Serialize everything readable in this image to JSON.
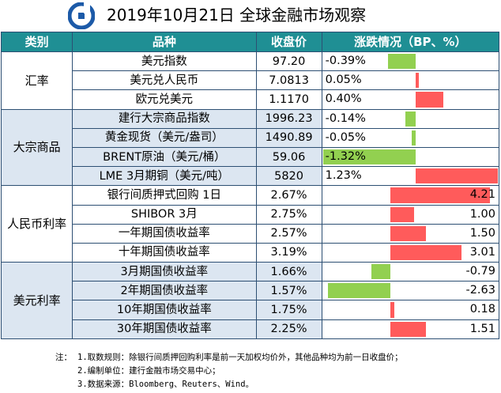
{
  "header": {
    "title": "2019年10月21日 全球金融市场观察",
    "logo_color": "#1c5aa8"
  },
  "table": {
    "columns": [
      "类别",
      "品种",
      "收盘价",
      "涨跌情况（BP、%）"
    ],
    "header_bg": "#1f8f94",
    "groups": [
      {
        "category": "汇率",
        "shade": "white",
        "mode": "pct",
        "rows": [
          {
            "name": "美元指数",
            "close": "97.20",
            "change": "-0.39%",
            "value": -0.39
          },
          {
            "name": "美元兑人民币",
            "close": "7.0813",
            "change": "0.05%",
            "value": 0.05
          },
          {
            "name": "欧元兑美元",
            "close": "1.1170",
            "change": "0.40%",
            "value": 0.4
          }
        ]
      },
      {
        "category": "大宗商品",
        "shade": "blue",
        "mode": "pct",
        "rows": [
          {
            "name": "建行大宗商品指数",
            "close": "1996.23",
            "change": "-0.14%",
            "value": -0.14
          },
          {
            "name": "黄金现货（美元/盎司）",
            "close": "1490.89",
            "change": "-0.05%",
            "value": -0.05
          },
          {
            "name": "BRENT原油（美元/桶）",
            "close": "59.06",
            "change": "-1.32%",
            "value": -1.32
          },
          {
            "name": "LME 3月期铜（美元/吨）",
            "close": "5820",
            "change": "1.23%",
            "value": 1.23
          }
        ]
      },
      {
        "category": "人民币利率",
        "shade": "white",
        "mode": "bp",
        "rows": [
          {
            "name": "银行间质押式回购 1日",
            "close": "2.67%",
            "change": "4.21",
            "value": 4.21
          },
          {
            "name": "SHIBOR 3月",
            "close": "2.75%",
            "change": "1.00",
            "value": 1.0
          },
          {
            "name": "一年期国债收益率",
            "close": "2.57%",
            "change": "1.50",
            "value": 1.5
          },
          {
            "name": "十年期国债收益率",
            "close": "3.19%",
            "change": "3.01",
            "value": 3.01
          }
        ]
      },
      {
        "category": "美元利率",
        "shade": "blue",
        "mode": "bp",
        "rows": [
          {
            "name": "3月期国债收益率",
            "close": "1.66%",
            "change": "-0.79",
            "value": -0.79
          },
          {
            "name": "2年期国债收益率",
            "close": "1.57%",
            "change": "-2.63",
            "value": -2.63
          },
          {
            "name": "10年期国债收益率",
            "close": "1.75%",
            "change": "0.18",
            "value": 0.18
          },
          {
            "name": "30年期国债收益率",
            "close": "2.25%",
            "change": "1.51",
            "value": 1.51
          }
        ]
      }
    ]
  },
  "notes": {
    "label": "注：",
    "items": [
      "1.取数规则：除银行间质押回购利率是前一天加权均价外，其他品种均为前一日收盘价；",
      "2.编制单位：建行金融市场交易中心；",
      "3.数据来源：Bloomberg、Reuters、Wind。"
    ]
  },
  "colors": {
    "positive": "#ff5b5b",
    "negative": "#92d050",
    "blue_shade": "#dce6f1"
  }
}
